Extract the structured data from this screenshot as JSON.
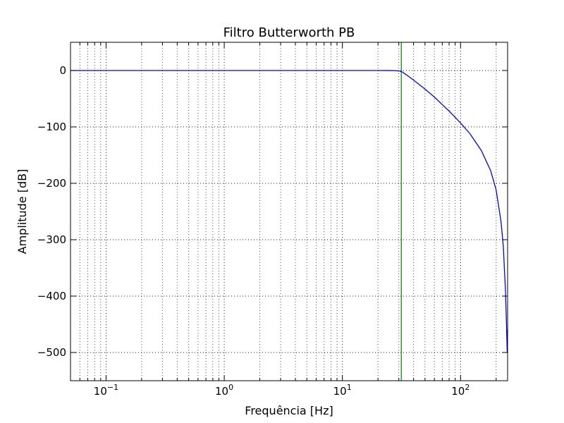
{
  "chart_data": {
    "type": "line",
    "title": "Filtro Butterworth PB",
    "xlabel": "Frequência [Hz]",
    "ylabel": "Amplitude [dB]",
    "xscale": "log",
    "xlim": [
      0.05,
      250
    ],
    "ylim": [
      -550,
      50
    ],
    "grid": true,
    "yticks": [
      {
        "value": 0,
        "label": "0"
      },
      {
        "value": -100,
        "label": "−100"
      },
      {
        "value": -200,
        "label": "−200"
      },
      {
        "value": -300,
        "label": "−300"
      },
      {
        "value": -400,
        "label": "−400"
      },
      {
        "value": -500,
        "label": "−500"
      }
    ],
    "xticks": [
      {
        "value": 0.1,
        "base": "10",
        "exp": "−1"
      },
      {
        "value": 1,
        "base": "10",
        "exp": "0"
      },
      {
        "value": 10,
        "base": "10",
        "exp": "1"
      },
      {
        "value": 100,
        "base": "10",
        "exp": "2"
      }
    ],
    "series": [
      {
        "color": "#0000ff",
        "x": [
          0.05,
          0.1,
          1,
          5,
          10,
          15,
          20,
          25,
          28,
          30,
          31,
          32,
          35,
          40,
          50,
          60,
          80,
          100,
          120,
          150,
          180,
          200,
          220,
          230,
          240,
          245,
          248,
          249,
          250
        ],
        "y": [
          0,
          0,
          0,
          0,
          0,
          0,
          0,
          -0.1,
          -0.3,
          -0.8,
          -1.5,
          -2.5,
          -8,
          -17,
          -33,
          -47,
          -72,
          -93,
          -112,
          -142,
          -178,
          -212,
          -268,
          -312,
          -392,
          -455,
          -500,
          -500,
          -460
        ]
      }
    ],
    "vline": {
      "x": 31.5,
      "color": "#008000"
    },
    "line_colors": {
      "curve": "#0000ff",
      "cutoff": "#008000",
      "grid": "#000000"
    }
  }
}
